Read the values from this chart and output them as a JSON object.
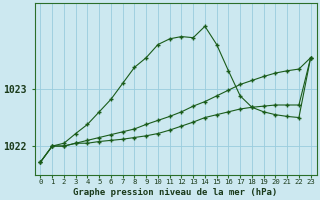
{
  "title": "Graphe pression niveau de la mer (hPa)",
  "background_color": "#cce8f0",
  "grid_color": "#99ccdd",
  "line_color": "#1a5c1a",
  "x_labels": [
    "0",
    "1",
    "2",
    "3",
    "4",
    "5",
    "6",
    "7",
    "8",
    "9",
    "10",
    "11",
    "12",
    "13",
    "14",
    "15",
    "16",
    "17",
    "18",
    "19",
    "20",
    "21",
    "22",
    "23"
  ],
  "ylim": [
    1021.5,
    1024.5
  ],
  "yticks": [
    1022,
    1023
  ],
  "figsize": [
    3.2,
    2.0
  ],
  "dpi": 100,
  "series": {
    "line_diag": [
      1021.72,
      1022.0,
      1022.0,
      1022.05,
      1022.1,
      1022.15,
      1022.2,
      1022.25,
      1022.3,
      1022.38,
      1022.45,
      1022.52,
      1022.6,
      1022.7,
      1022.78,
      1022.88,
      1022.98,
      1023.08,
      1023.15,
      1023.22,
      1023.28,
      1023.32,
      1023.35,
      1023.55
    ],
    "line_steep": [
      1021.72,
      1022.0,
      1022.05,
      1022.22,
      1022.38,
      1022.6,
      1022.82,
      1023.1,
      1023.38,
      1023.55,
      1023.78,
      1023.88,
      1023.92,
      1023.9,
      1024.1,
      1023.78,
      1023.32,
      1022.88,
      1022.68,
      1022.6,
      1022.55,
      1022.52,
      1022.5,
      1023.55
    ],
    "line_flat": [
      1021.72,
      1022.0,
      1022.0,
      1022.05,
      1022.05,
      1022.08,
      1022.1,
      1022.12,
      1022.15,
      1022.18,
      1022.22,
      1022.28,
      1022.35,
      1022.42,
      1022.5,
      1022.55,
      1022.6,
      1022.65,
      1022.68,
      1022.7,
      1022.72,
      1022.72,
      1022.72,
      1023.55
    ]
  }
}
